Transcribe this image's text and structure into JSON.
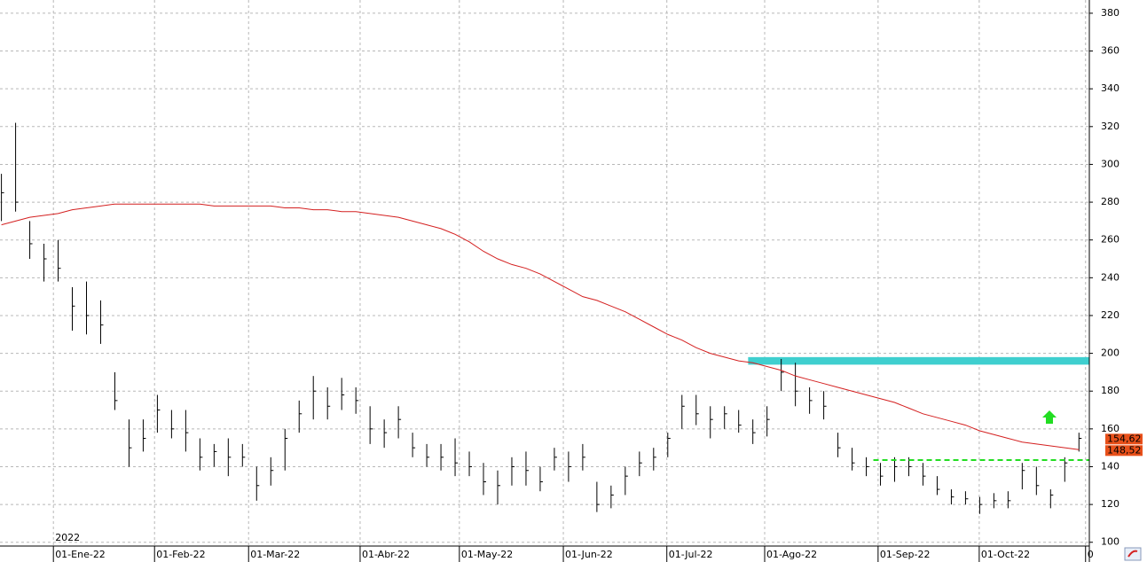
{
  "chart_data": {
    "type": "ohlc",
    "year_label": "2022",
    "xlim": [
      -11.3,
      219.2
    ],
    "ylim": [
      98,
      387
    ],
    "grid": true,
    "xticks": [
      {
        "value": 0,
        "label": "01-Ene-22"
      },
      {
        "value": 21.4,
        "label": "01-Feb-22"
      },
      {
        "value": 41.3,
        "label": "01-Mar-22"
      },
      {
        "value": 64.9,
        "label": "01-Abr-22"
      },
      {
        "value": 85.9,
        "label": "01-May-22"
      },
      {
        "value": 107.9,
        "label": "01-Jun-22"
      },
      {
        "value": 129.8,
        "label": "01-Jul-22"
      },
      {
        "value": 150.5,
        "label": "01-Ago-22"
      },
      {
        "value": 174.5,
        "label": "01-Sep-22"
      },
      {
        "value": 195.9,
        "label": "01-Oct-22"
      },
      {
        "value": 218.4,
        "label": "0"
      }
    ],
    "yticks": [
      100,
      120,
      140,
      160,
      180,
      200,
      220,
      240,
      260,
      280,
      300,
      320,
      340,
      360,
      380
    ],
    "bar_color": "#000000",
    "ohlc": {
      "x": [
        -11,
        -8,
        -5,
        -2,
        1,
        4,
        7,
        10,
        13,
        16,
        19,
        22,
        25,
        28,
        31,
        34,
        37,
        40,
        43,
        46,
        49,
        52,
        55,
        58,
        61,
        64,
        67,
        70,
        73,
        76,
        79,
        82,
        85,
        88,
        91,
        94,
        97,
        100,
        103,
        106,
        109,
        112,
        115,
        118,
        121,
        124,
        127,
        130,
        133,
        136,
        139,
        142,
        145,
        148,
        151,
        154,
        157,
        160,
        163,
        166,
        169,
        172,
        175,
        178,
        181,
        184,
        187,
        190,
        193,
        196,
        199,
        202,
        205,
        208,
        211,
        214,
        217
      ],
      "high": [
        295,
        322,
        270,
        258,
        260,
        235,
        238,
        228,
        190,
        165,
        165,
        178,
        170,
        170,
        155,
        152,
        155,
        152,
        140,
        145,
        160,
        175,
        188,
        182,
        187,
        182,
        172,
        165,
        172,
        158,
        152,
        152,
        155,
        148,
        142,
        138,
        145,
        148,
        140,
        150,
        148,
        152,
        132,
        130,
        140,
        148,
        150,
        158,
        178,
        178,
        172,
        172,
        170,
        165,
        172,
        197,
        195,
        182,
        180,
        158,
        150,
        145,
        142,
        145,
        145,
        142,
        135,
        128,
        127,
        124,
        126,
        127,
        142,
        140,
        128,
        145,
        158
      ],
      "low": [
        270,
        275,
        250,
        238,
        238,
        212,
        210,
        205,
        170,
        140,
        148,
        158,
        155,
        148,
        138,
        140,
        135,
        140,
        122,
        130,
        138,
        158,
        165,
        165,
        170,
        168,
        152,
        150,
        155,
        145,
        140,
        138,
        135,
        135,
        125,
        120,
        130,
        130,
        127,
        138,
        132,
        138,
        116,
        118,
        125,
        135,
        138,
        145,
        160,
        162,
        155,
        160,
        158,
        152,
        156,
        180,
        172,
        168,
        165,
        145,
        138,
        135,
        130,
        132,
        135,
        130,
        125,
        120,
        120,
        115,
        118,
        118,
        128,
        125,
        118,
        132,
        148
      ],
      "close": [
        285,
        280,
        258,
        250,
        245,
        225,
        220,
        215,
        175,
        150,
        155,
        170,
        160,
        158,
        145,
        148,
        145,
        145,
        130,
        138,
        155,
        168,
        180,
        172,
        178,
        175,
        160,
        158,
        165,
        150,
        145,
        145,
        142,
        140,
        132,
        130,
        140,
        138,
        132,
        145,
        140,
        145,
        120,
        125,
        135,
        142,
        145,
        155,
        172,
        168,
        165,
        168,
        162,
        158,
        165,
        190,
        180,
        175,
        172,
        150,
        142,
        140,
        135,
        140,
        140,
        135,
        128,
        124,
        123,
        120,
        122,
        122,
        138,
        130,
        125,
        142,
        155
      ]
    },
    "moving_average": {
      "color": "#d42020",
      "values": [
        268,
        270,
        272,
        273,
        274,
        276,
        277,
        278,
        279,
        279,
        279,
        279,
        279,
        279,
        279,
        278,
        278,
        278,
        278,
        278,
        277,
        277,
        276,
        276,
        275,
        275,
        274,
        273,
        272,
        270,
        268,
        266,
        263,
        259,
        254,
        250,
        247,
        245,
        242,
        238,
        234,
        230,
        228,
        225,
        222,
        218,
        214,
        210,
        207,
        203,
        200,
        198,
        196,
        195,
        193,
        191,
        188,
        186,
        184,
        182,
        180,
        178,
        176,
        174,
        171,
        168,
        166,
        164,
        162,
        159,
        157,
        155,
        153,
        152,
        151,
        150,
        149
      ]
    },
    "resistance_zone": {
      "ylim": [
        194,
        198
      ],
      "x_start": 147,
      "color": "#3fcfcf"
    },
    "support_line": {
      "value": 143.5,
      "x_start": 173.5,
      "color": "#22dd22"
    },
    "last_labels": [
      {
        "value": 154.62,
        "label": "154,62"
      },
      {
        "value": 148.52,
        "label": "148,52"
      }
    ],
    "last_label_color": "#e8501a"
  }
}
